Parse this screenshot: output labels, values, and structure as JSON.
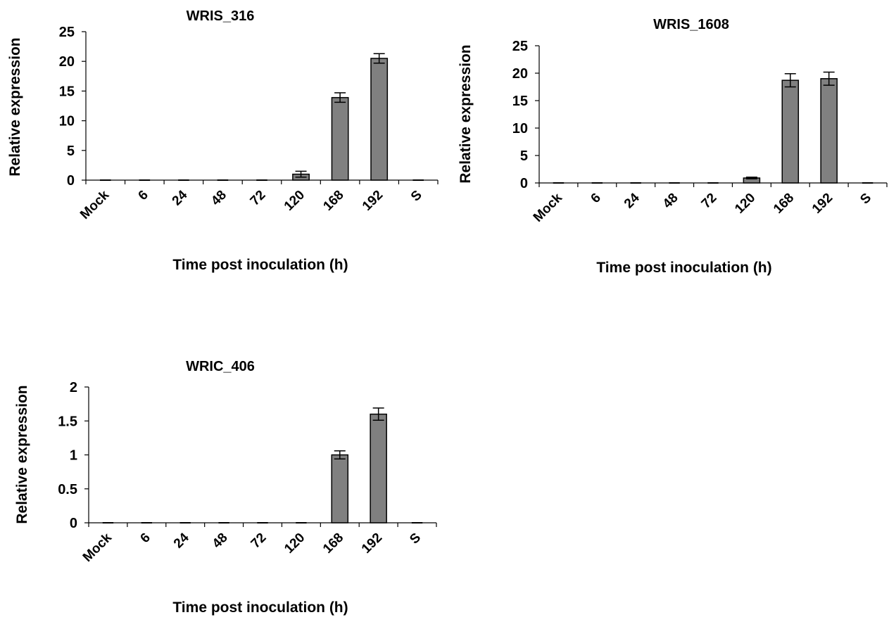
{
  "chart_data": [
    {
      "type": "bar",
      "title": "WRIS_316",
      "xlabel": "Time post inoculation (h)",
      "ylabel": "Relative expression",
      "categories": [
        "Mock",
        "6",
        "24",
        "48",
        "72",
        "120",
        "168",
        "192",
        "S"
      ],
      "yticks": [
        "0",
        "5",
        "10",
        "15",
        "20",
        "25"
      ],
      "ylim": [
        0,
        25
      ],
      "values": [
        0,
        0,
        0,
        0,
        0,
        1.0,
        13.9,
        20.5,
        0
      ],
      "errors": [
        0,
        0,
        0,
        0,
        0,
        0.5,
        0.8,
        0.8,
        0
      ],
      "bar_color": "#808080",
      "grid": false
    },
    {
      "type": "bar",
      "title": "WRIS_1608",
      "xlabel": "Time post inoculation (h)",
      "ylabel": "Relative expression",
      "categories": [
        "Mock",
        "6",
        "24",
        "48",
        "72",
        "120",
        "168",
        "192",
        "S"
      ],
      "yticks": [
        "0",
        "5",
        "10",
        "15",
        "20",
        "25"
      ],
      "ylim": [
        0,
        25
      ],
      "values": [
        0,
        0,
        0,
        0,
        0,
        0.9,
        18.7,
        19.0,
        0
      ],
      "errors": [
        0,
        0,
        0,
        0,
        0,
        0.15,
        1.2,
        1.2,
        0
      ],
      "bar_color": "#808080",
      "grid": false
    },
    {
      "type": "bar",
      "title": "WRIC_406",
      "xlabel": "Time post inoculation (h)",
      "ylabel": "Relative expression",
      "categories": [
        "Mock",
        "6",
        "24",
        "48",
        "72",
        "120",
        "168",
        "192",
        "S"
      ],
      "yticks": [
        "0",
        "0.5",
        "1",
        "1.5",
        "2"
      ],
      "ylim": [
        0,
        2
      ],
      "values": [
        0,
        0,
        0,
        0,
        0,
        0,
        1.0,
        1.6,
        0
      ],
      "errors": [
        0,
        0,
        0,
        0,
        0,
        0,
        0.06,
        0.09,
        0
      ],
      "bar_color": "#808080",
      "grid": false
    }
  ]
}
